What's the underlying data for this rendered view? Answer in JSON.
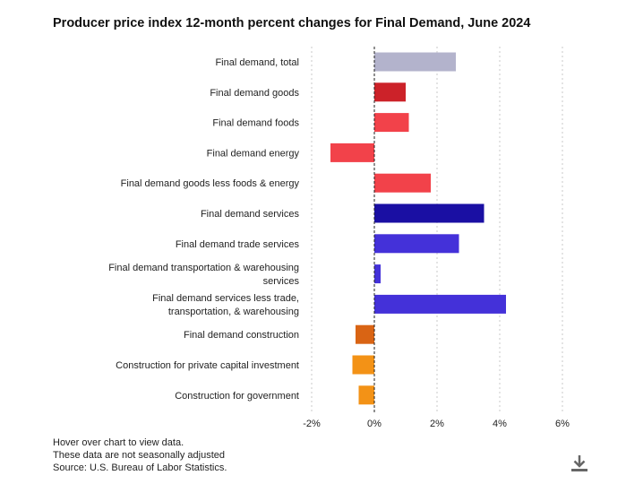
{
  "chart_data": {
    "type": "bar",
    "orientation": "horizontal",
    "title": "Producer price index 12-month percent changes for Final Demand, June 2024",
    "categories": [
      "Final demand, total",
      "Final demand goods",
      "Final demand foods",
      "Final demand energy",
      "Final demand goods less foods & energy",
      "Final demand services",
      "Final demand trade services",
      "Final demand transportation & warehousing services",
      "Final demand services less trade, transportation, & warehousing",
      "Final demand construction",
      "Construction for private capital investment",
      "Construction for government"
    ],
    "values": [
      2.6,
      1.0,
      1.1,
      -1.4,
      1.8,
      3.5,
      2.7,
      0.2,
      4.2,
      -0.6,
      -0.7,
      -0.5
    ],
    "colors": [
      "#b3b3cc",
      "#cc2229",
      "#f2424a",
      "#f2424a",
      "#f2424a",
      "#1a0fa3",
      "#4431d9",
      "#4431d9",
      "#4431d9",
      "#d96414",
      "#f39216",
      "#f39216"
    ],
    "xlim": [
      -2,
      6
    ],
    "xticks": [
      -2,
      0,
      2,
      4,
      6
    ],
    "xtick_labels": [
      "-2%",
      "0%",
      "2%",
      "4%",
      "6%"
    ],
    "grid": true,
    "xlabel": "",
    "ylabel": ""
  },
  "footnotes": {
    "hover": "Hover over chart to view data.",
    "seasonal": "These data are not seasonally adjusted",
    "source": "Source: U.S. Bureau of Labor Statistics."
  },
  "download": {
    "icon": "download-icon"
  }
}
